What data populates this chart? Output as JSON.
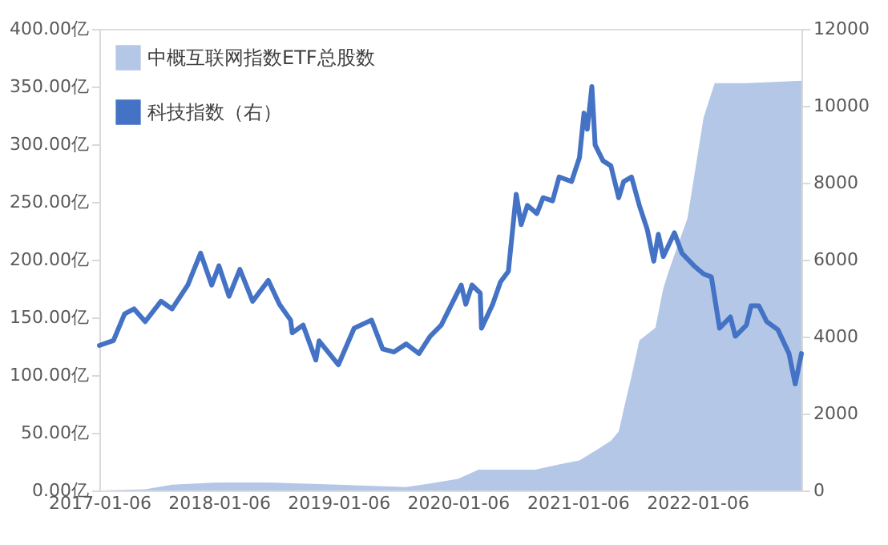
{
  "chart_data": {
    "type": "line",
    "legend": "top left",
    "grid": false,
    "xlim": [
      "2017-01-06",
      "2022-11-20"
    ],
    "xticks": [
      {
        "value": "2017-01-06",
        "label": "2017-01-06"
      },
      {
        "value": "2018-01-06",
        "label": "2018-01-06"
      },
      {
        "value": "2019-01-06",
        "label": "2019-01-06"
      },
      {
        "value": "2020-01-06",
        "label": "2020-01-06"
      },
      {
        "value": "2021-01-06",
        "label": "2021-01-06"
      },
      {
        "value": "2022-01-06",
        "label": "2022-01-06"
      }
    ],
    "ylim": [
      0,
      400
    ],
    "yticks": [
      {
        "value": 0,
        "label": "0.00亿"
      },
      {
        "value": 50,
        "label": "50.00亿"
      },
      {
        "value": 100,
        "label": "100.00亿"
      },
      {
        "value": 150,
        "label": "150.00亿"
      },
      {
        "value": 200,
        "label": "200.00亿"
      },
      {
        "value": 250,
        "label": "250.00亿"
      },
      {
        "value": 300,
        "label": "300.00亿"
      },
      {
        "value": 350,
        "label": "350.00亿"
      },
      {
        "value": 400,
        "label": "400.00亿"
      }
    ],
    "y2lim": [
      0,
      12000
    ],
    "y2ticks": [
      0,
      2000,
      4000,
      6000,
      8000,
      10000,
      12000
    ],
    "series": [
      {
        "name": "中概互联网指数ETF总股数",
        "type": "area",
        "axis": "y",
        "color": "#b4c7e7",
        "x": [
          "2017-01-06",
          "2017-05-26",
          "2017-08-16",
          "2018-01-06",
          "2018-06-06",
          "2019-01-06",
          "2019-08-01",
          "2019-10-13",
          "2020-01-06",
          "2020-03-09",
          "2020-08-29",
          "2020-11-15",
          "2021-01-11",
          "2021-03-09",
          "2021-04-17",
          "2021-05-11",
          "2021-05-26",
          "2021-06-19",
          "2021-07-13",
          "2021-08-31",
          "2021-09-24",
          "2021-10-13",
          "2021-12-07",
          "2022-01-25",
          "2022-02-28",
          "2022-06-05",
          "2022-11-20"
        ],
        "values": [
          0,
          1,
          5,
          7,
          7,
          5,
          3,
          6,
          10,
          18,
          18,
          23,
          26,
          36,
          43,
          51,
          70,
          99,
          130,
          141,
          175,
          192,
          236,
          323,
          353,
          353,
          355
        ]
      },
      {
        "name": "科技指数（右）",
        "axis": "y2",
        "color": "#4472c4",
        "x": [
          "2017-01-06",
          "2017-02-18",
          "2017-03-24",
          "2017-04-22",
          "2017-05-26",
          "2017-07-13",
          "2017-08-16",
          "2017-10-03",
          "2017-11-11",
          "2017-12-15",
          "2018-01-06",
          "2018-02-06",
          "2018-03-11",
          "2018-04-19",
          "2018-06-06",
          "2018-07-10",
          "2018-08-13",
          "2018-08-18",
          "2018-09-20",
          "2018-10-29",
          "2018-11-08",
          "2019-01-06",
          "2019-02-23",
          "2019-04-17",
          "2019-05-21",
          "2019-06-24",
          "2019-08-01",
          "2019-09-09",
          "2019-10-13",
          "2019-11-16",
          "2020-01-16",
          "2020-01-30",
          "2020-02-18",
          "2020-03-14",
          "2020-03-18",
          "2020-04-21",
          "2020-05-15",
          "2020-06-08",
          "2020-07-02",
          "2020-07-17",
          "2020-08-05",
          "2020-09-03",
          "2020-09-22",
          "2020-10-21",
          "2020-11-10",
          "2020-12-18",
          "2021-01-11",
          "2021-01-25",
          "2021-02-04",
          "2021-02-18",
          "2021-02-28",
          "2021-03-24",
          "2021-04-17",
          "2021-05-11",
          "2021-05-26",
          "2021-06-19",
          "2021-07-13",
          "2021-08-06",
          "2021-08-26",
          "2021-09-09",
          "2021-09-24",
          "2021-10-28",
          "2021-11-20",
          "2021-12-27",
          "2022-01-25",
          "2022-02-18",
          "2022-03-15",
          "2022-04-17",
          "2022-05-02",
          "2022-06-05",
          "2022-06-19",
          "2022-07-13",
          "2022-08-06",
          "2022-09-09",
          "2022-10-13",
          "2022-11-01",
          "2022-11-20"
        ],
        "values": [
          3770,
          3900,
          4590,
          4720,
          4390,
          4920,
          4720,
          5340,
          6170,
          5340,
          5840,
          5050,
          5750,
          4920,
          5460,
          4840,
          4430,
          4100,
          4300,
          3390,
          3890,
          3270,
          4220,
          4430,
          3680,
          3600,
          3810,
          3560,
          4010,
          4300,
          5340,
          4840,
          5340,
          5130,
          4220,
          4840,
          5420,
          5700,
          7700,
          6910,
          7410,
          7200,
          7610,
          7530,
          8150,
          8030,
          8650,
          9810,
          9390,
          10500,
          8980,
          8570,
          8440,
          7610,
          8030,
          8150,
          7410,
          6790,
          5960,
          6660,
          6080,
          6700,
          6170,
          5840,
          5630,
          5550,
          4220,
          4510,
          4010,
          4300,
          4800,
          4800,
          4390,
          4180,
          3560,
          2770,
          3560
        ]
      }
    ]
  }
}
